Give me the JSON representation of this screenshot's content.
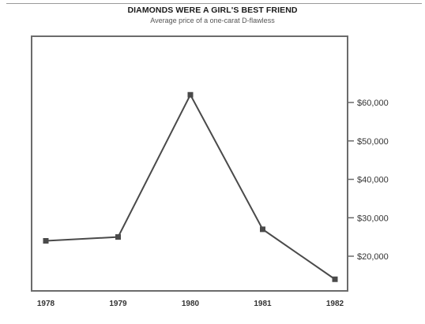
{
  "chart_data": {
    "type": "line",
    "title": "DIAMONDS WERE A GIRL'S BEST FRIEND",
    "subtitle": "Average price of a one-carat D-flawless",
    "categories": [
      "1978",
      "1979",
      "1980",
      "1981",
      "1982"
    ],
    "series": [
      {
        "values": [
          24000,
          25000,
          62000,
          27000,
          14000
        ]
      }
    ],
    "y_ticks": [
      20000,
      30000,
      40000,
      50000,
      60000
    ],
    "y_tick_labels": [
      "$20,000",
      "$30,000",
      "$40,000",
      "$50,000",
      "$60,000"
    ],
    "ylim": [
      12000,
      76000
    ],
    "y_axis_side": "right",
    "grid": false,
    "line_color": "#4a4a4a",
    "frame_color": "#6b6b6b"
  }
}
